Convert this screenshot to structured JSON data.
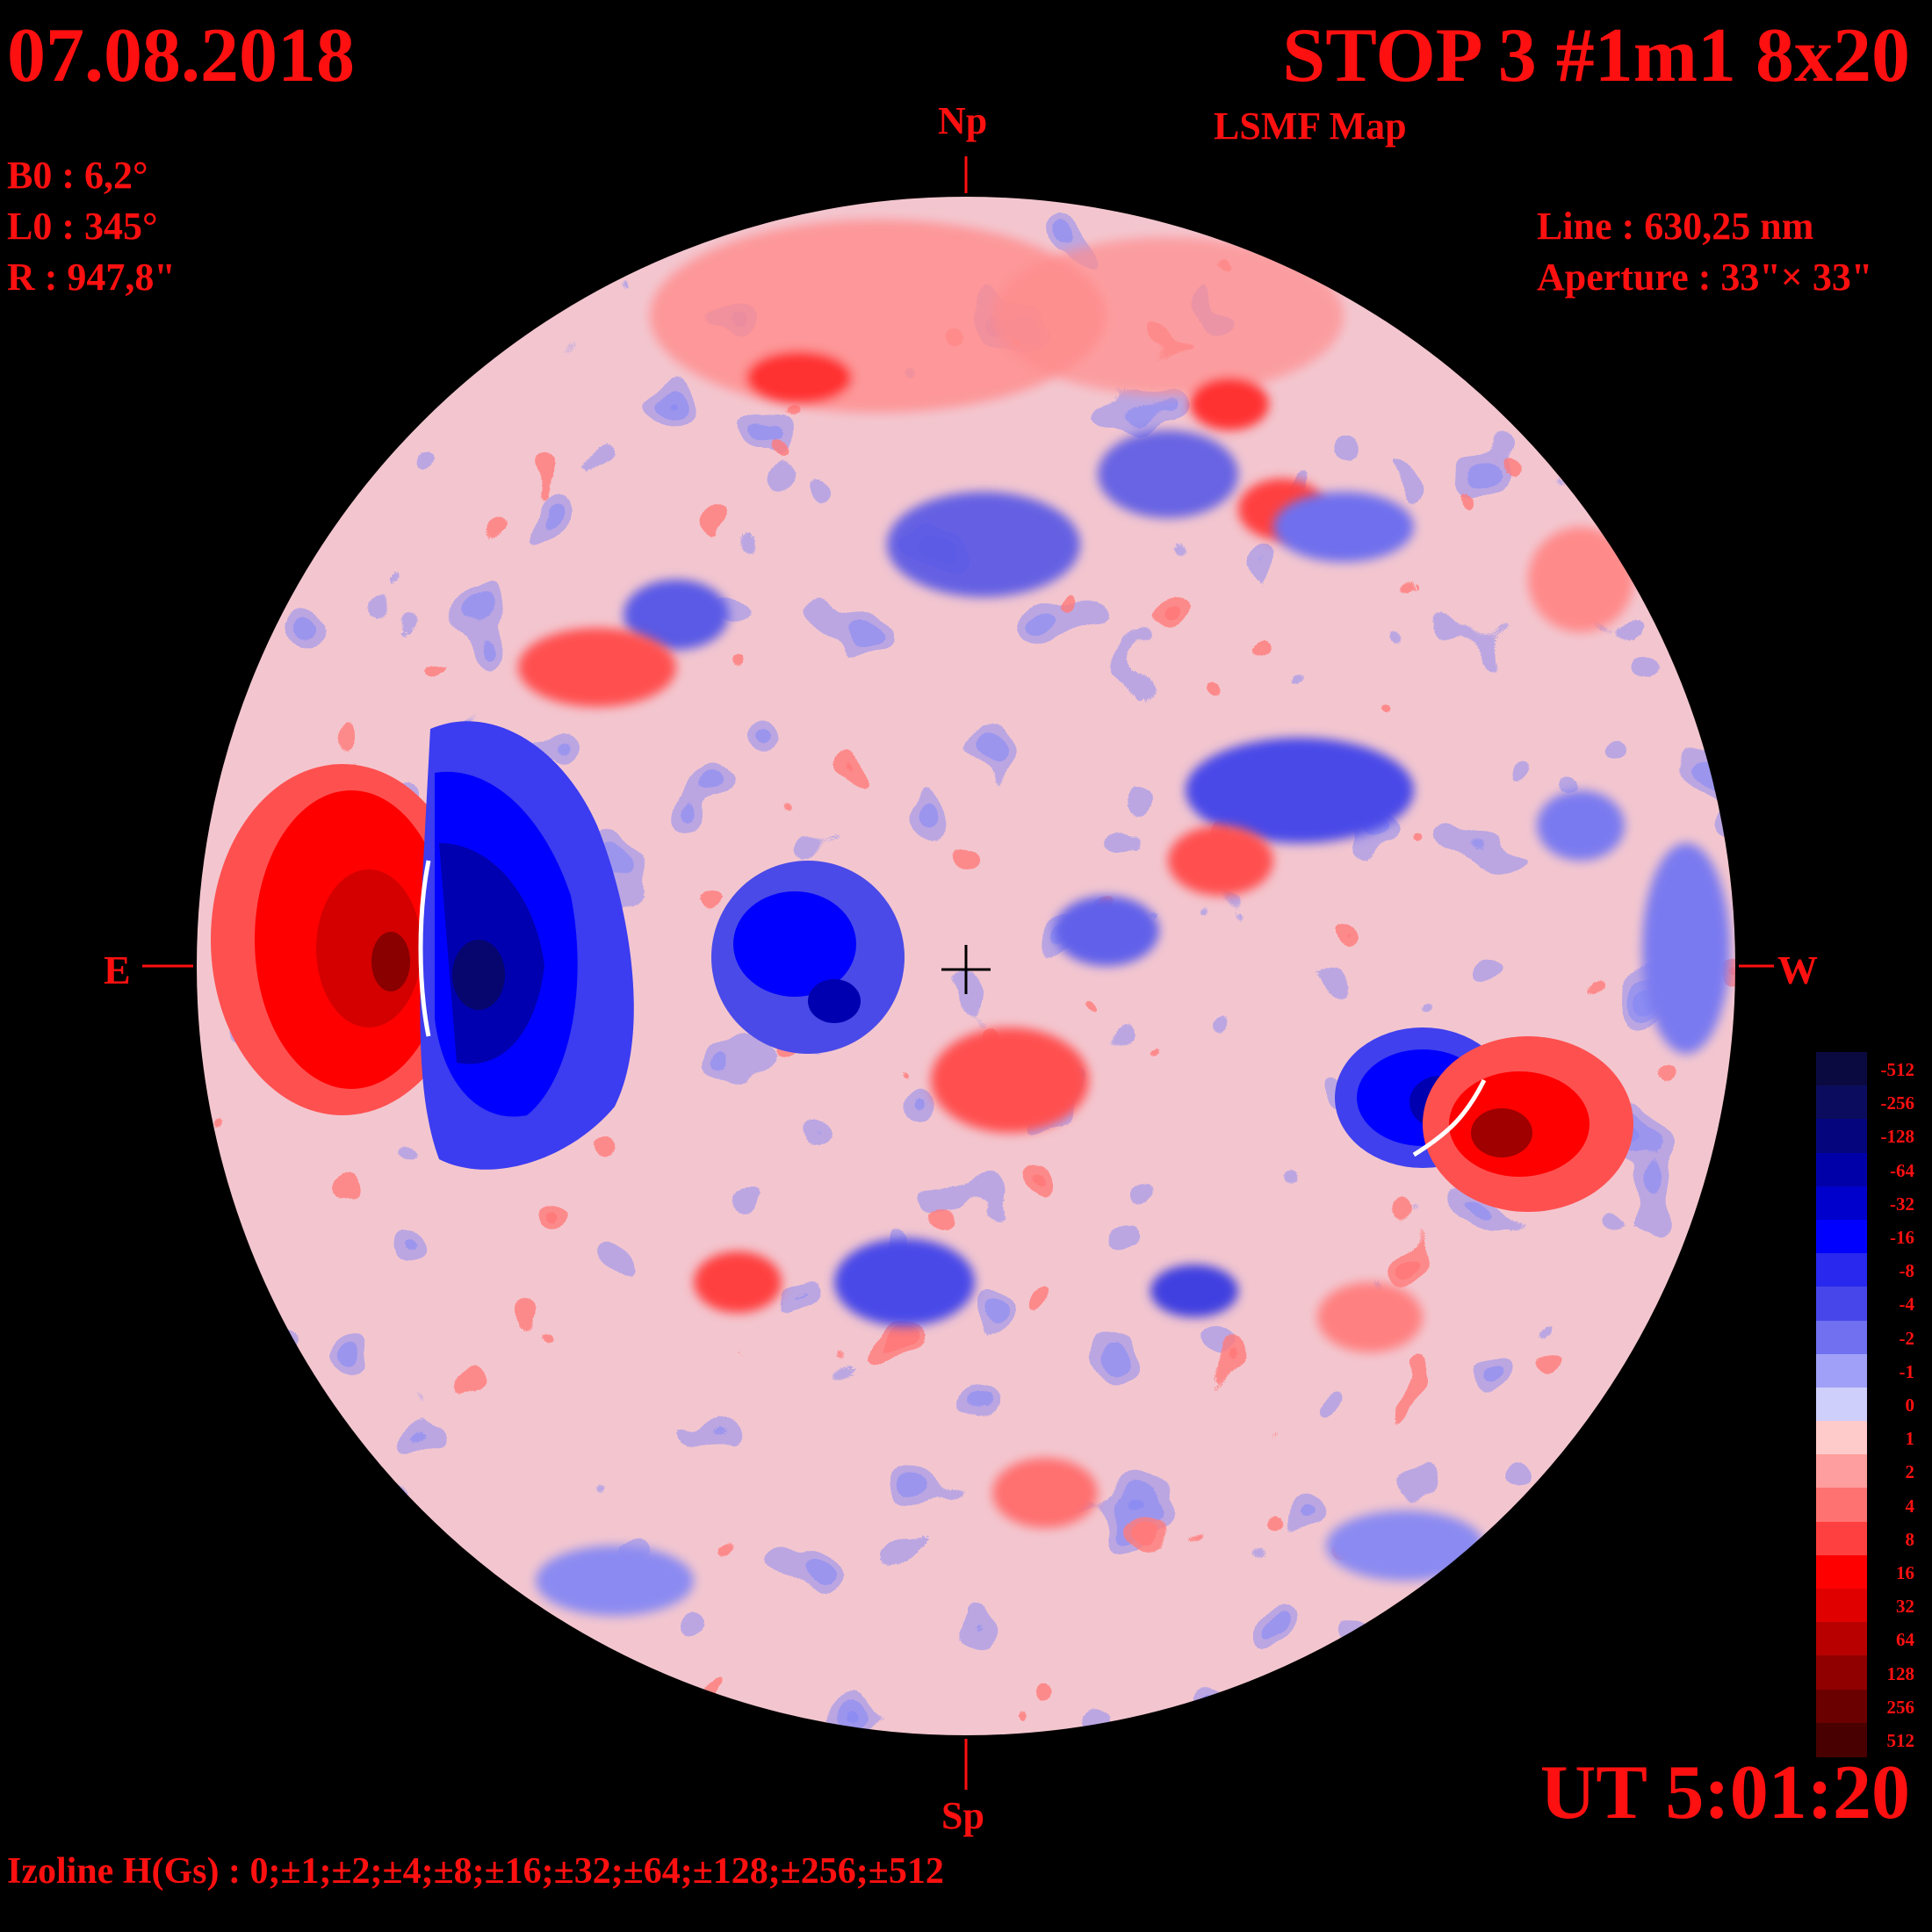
{
  "header": {
    "date": "07.08.2018",
    "title": "STOP 3 #1m1 8x20",
    "subtitle": "LSMF  Map",
    "b0": "B0 : 6,2°",
    "l0": "L0 : 345°",
    "r": "R  : 947,8\"",
    "line": "Line :  630,25 nm",
    "aperture": "Aperture : 33\"× 33\""
  },
  "footer": {
    "ut": "UT 5:01:20",
    "izoline": "Izoline H(Gs) : 0;±1;±2;±4;±8;±16;±32;±64;±128;±256;±512"
  },
  "directions": {
    "north": "Np",
    "south": "Sp",
    "east": "E",
    "west": "W"
  },
  "colorbar": {
    "labels": [
      "-512",
      "-256",
      "-128",
      "-64",
      "-32",
      "-16",
      "-8",
      "-4",
      "-2",
      "-1",
      "0",
      "1",
      "2",
      "4",
      "8",
      "16",
      "32",
      "64",
      "128",
      "256",
      "512"
    ],
    "colors": [
      "#0a0a40",
      "#0c0c5e",
      "#05057e",
      "#0000a8",
      "#0000cc",
      "#0000ff",
      "#2828ee",
      "#4646ea",
      "#7070f0",
      "#a0a0f8",
      "#cfcffb",
      "#ffcaca",
      "#ff9e9e",
      "#ff7272",
      "#ff4040",
      "#ff0000",
      "#e00000",
      "#b80000",
      "#900000",
      "#6a0000",
      "#480000"
    ]
  },
  "map": {
    "major_regions": [
      {
        "label": "east positive",
        "polarity": "positive",
        "level": 32
      },
      {
        "label": "east negative",
        "polarity": "negative",
        "level": -64
      },
      {
        "label": "central negative",
        "polarity": "negative",
        "level": -16
      },
      {
        "label": "west negative",
        "polarity": "negative",
        "level": -32
      },
      {
        "label": "west positive",
        "polarity": "positive",
        "level": 64
      }
    ]
  }
}
